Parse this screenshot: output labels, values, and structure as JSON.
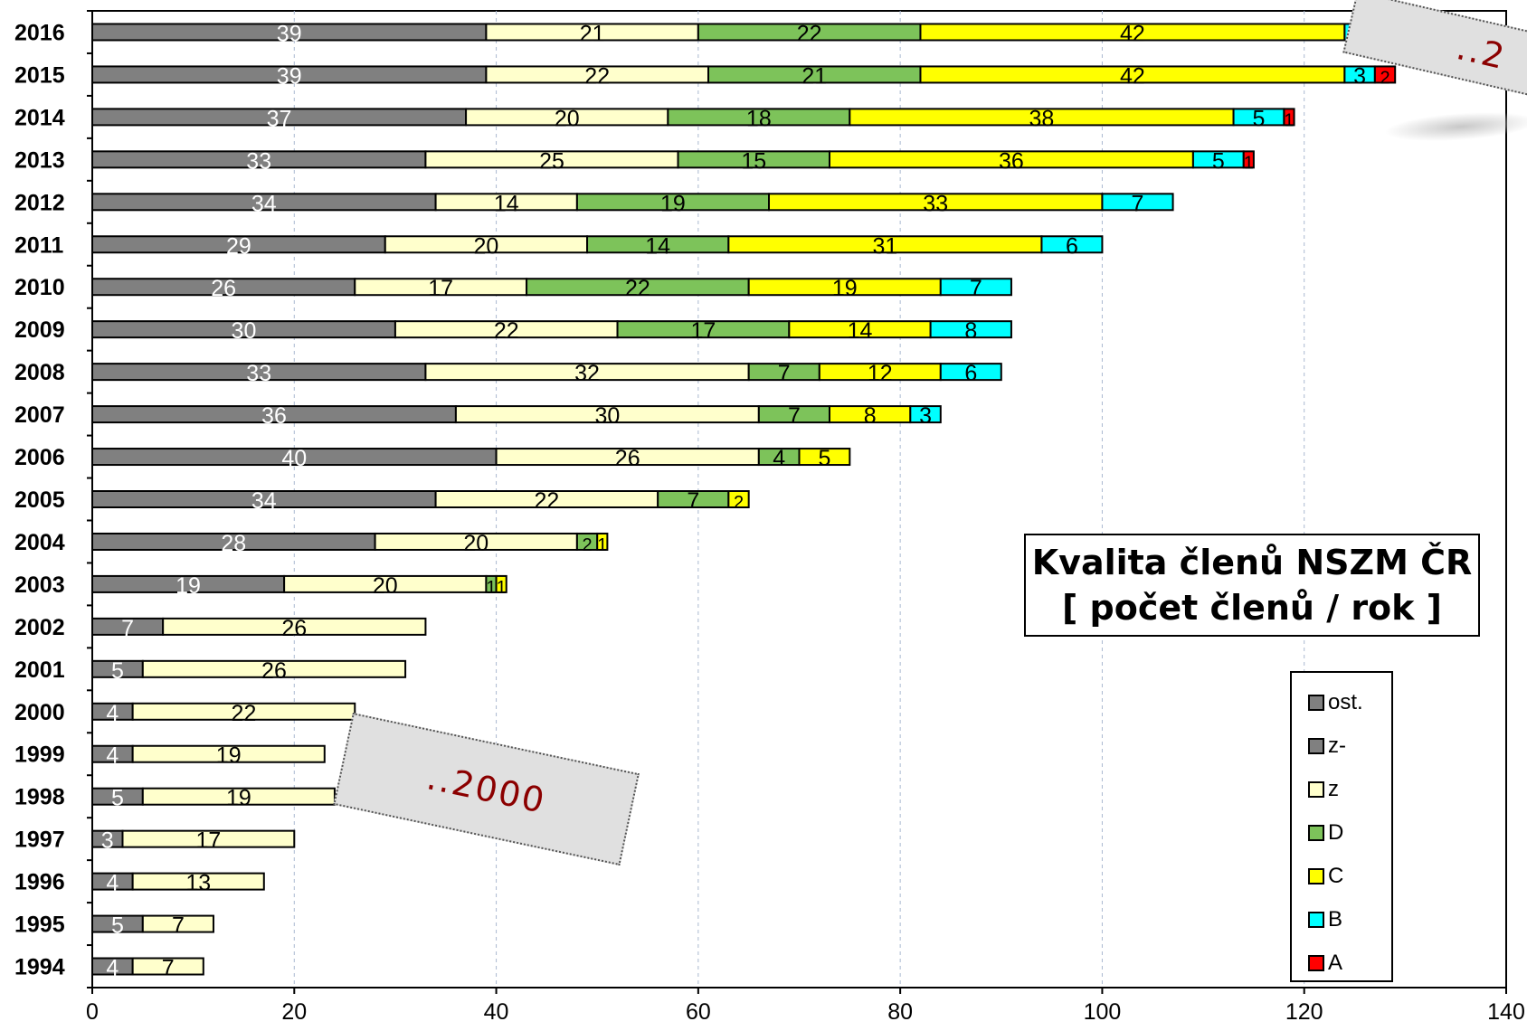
{
  "chart_data": {
    "type": "bar",
    "orientation": "horizontal",
    "stacked": true,
    "title": "Kvalita členů NSZM ČR",
    "subtitle": "[ počet členů / rok ]",
    "xlabel": "",
    "ylabel": "",
    "xlim": [
      0,
      140
    ],
    "xticks": [
      0,
      20,
      40,
      60,
      80,
      100,
      120,
      140
    ],
    "grid": "vertical dashed",
    "legend_position": "bottom-right",
    "categories": [
      "2016",
      "2015",
      "2014",
      "2013",
      "2012",
      "2011",
      "2010",
      "2009",
      "2008",
      "2007",
      "2006",
      "2005",
      "2004",
      "2003",
      "2002",
      "2001",
      "2000",
      "1999",
      "1998",
      "1997",
      "1996",
      "1995",
      "1994"
    ],
    "series": [
      {
        "name": "ost.",
        "color": "#808080",
        "label_color": "#ffffff",
        "values": [
          39,
          39,
          37,
          33,
          34,
          29,
          26,
          30,
          33,
          36,
          40,
          34,
          28,
          19,
          7,
          5,
          4,
          4,
          5,
          3,
          4,
          5,
          4
        ]
      },
      {
        "name": "z-",
        "color": "#808080",
        "label_color": "#ffffff",
        "values": [
          0,
          0,
          0,
          0,
          0,
          0,
          0,
          0,
          0,
          0,
          0,
          0,
          0,
          0,
          0,
          0,
          0,
          0,
          0,
          0,
          0,
          0,
          0
        ]
      },
      {
        "name": "z",
        "color": "#ffffcc",
        "label_color": "#000000",
        "values": [
          21,
          22,
          20,
          25,
          14,
          20,
          17,
          22,
          32,
          30,
          26,
          22,
          20,
          20,
          26,
          26,
          22,
          19,
          19,
          17,
          13,
          7,
          7
        ]
      },
      {
        "name": "D",
        "color": "#7dc35a",
        "label_color": "#000000",
        "values": [
          22,
          21,
          18,
          15,
          19,
          14,
          22,
          17,
          7,
          7,
          4,
          7,
          2,
          1,
          0,
          0,
          0,
          0,
          0,
          0,
          0,
          0,
          0
        ]
      },
      {
        "name": "C",
        "color": "#ffff00",
        "label_color": "#000000",
        "values": [
          42,
          42,
          38,
          36,
          33,
          31,
          19,
          14,
          12,
          8,
          5,
          2,
          1,
          1,
          0,
          0,
          0,
          0,
          0,
          0,
          0,
          0,
          0
        ]
      },
      {
        "name": "B",
        "color": "#00ffff",
        "label_color": "#000000",
        "values": [
          3,
          3,
          5,
          5,
          7,
          6,
          7,
          8,
          6,
          3,
          0,
          0,
          0,
          0,
          0,
          0,
          0,
          0,
          0,
          0,
          0,
          0,
          0
        ]
      },
      {
        "name": "A",
        "color": "#ff0000",
        "label_color": "#000000",
        "values": [
          2,
          2,
          1,
          1,
          0,
          0,
          0,
          0,
          0,
          0,
          0,
          0,
          0,
          0,
          0,
          0,
          0,
          0,
          0,
          0,
          0,
          0,
          0
        ]
      }
    ]
  },
  "tags": {
    "tag_2000": "..2000",
    "tag_2016": "..2"
  }
}
